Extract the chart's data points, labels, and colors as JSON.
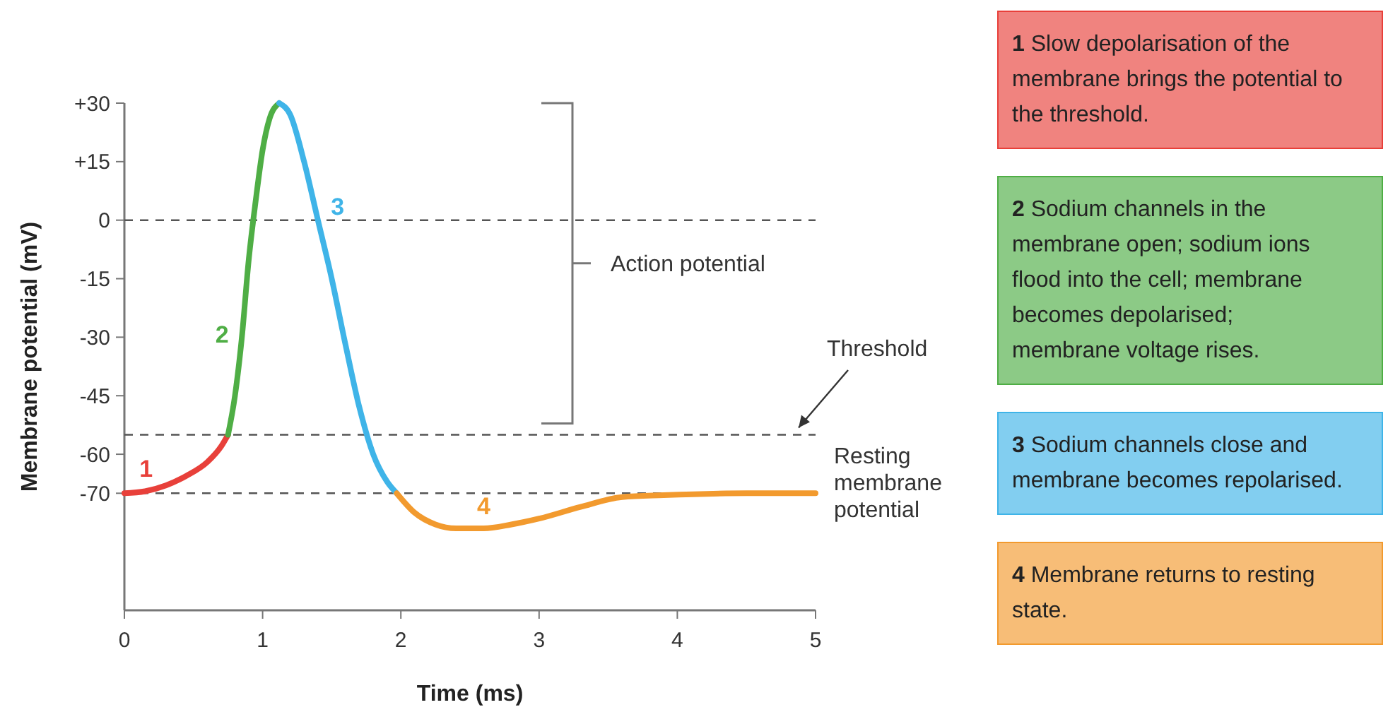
{
  "chart_data": {
    "type": "line",
    "xlabel": "Time (ms)",
    "ylabel": "Membrane potential (mV)",
    "xlim": [
      0,
      5
    ],
    "xticks": [
      0,
      1,
      2,
      3,
      4,
      5
    ],
    "ylim": [
      -100,
      30
    ],
    "yticks": [
      {
        "value": 30,
        "label": "+30"
      },
      {
        "value": 15,
        "label": "+15"
      },
      0,
      -15,
      -30,
      -45,
      -60,
      -70
    ],
    "series": [
      {
        "name": "1",
        "color": "#e8403a",
        "x": [
          0,
          0.15,
          0.3,
          0.45,
          0.6,
          0.7,
          0.75
        ],
        "values": [
          -70,
          -69.5,
          -68,
          -65.5,
          -62,
          -58,
          -55
        ]
      },
      {
        "name": "2",
        "color": "#4fae45",
        "x": [
          0.75,
          0.8,
          0.85,
          0.9,
          0.95,
          1.0,
          1.05,
          1.12
        ],
        "values": [
          -55,
          -45,
          -30,
          -10,
          5,
          18,
          26,
          30
        ]
      },
      {
        "name": "3",
        "color": "#3fb4e8",
        "x": [
          1.12,
          1.2,
          1.3,
          1.4,
          1.5,
          1.6,
          1.7,
          1.8,
          1.9,
          1.97
        ],
        "values": [
          30,
          27,
          15,
          0,
          -15,
          -32,
          -48,
          -60,
          -67,
          -70
        ]
      },
      {
        "name": "4",
        "color": "#f29a2e",
        "x": [
          1.97,
          2.1,
          2.25,
          2.4,
          2.6,
          2.8,
          3.0,
          3.3,
          3.6,
          3.9,
          4.5,
          5
        ],
        "values": [
          -70,
          -75,
          -78,
          -79,
          -79,
          -78,
          -76.5,
          -73.5,
          -71,
          -70.5,
          -70,
          -70
        ]
      }
    ],
    "ref_lines": [
      {
        "axis": "y",
        "value": 0,
        "label": null
      },
      {
        "axis": "y",
        "value": -55,
        "label": "Threshold"
      },
      {
        "axis": "y",
        "value": -70,
        "label": "Resting membrane potential"
      }
    ],
    "line_style": "solid",
    "marker": "none",
    "grid": false,
    "annotations": [
      "Action potential",
      "1 Slow depolarisation of the membrane brings the potential to the threshold.",
      "2 Sodium channels in the membrane open; sodium ions flood into the cell; membrane becomes depolarised; membrane voltage rises.",
      "3 Sodium channels close and membrane becomes repolarised.",
      "4 Membrane returns to resting state."
    ]
  }
}
